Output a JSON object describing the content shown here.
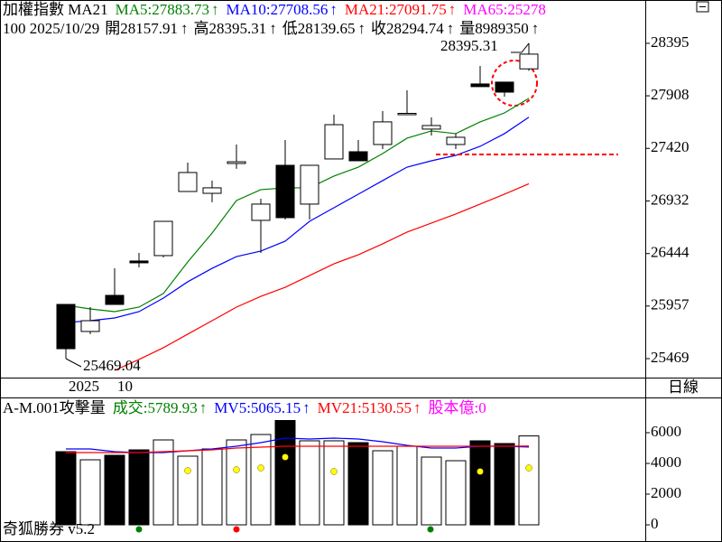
{
  "chart_data": [
    {
      "type": "candlestick",
      "title": "加權指數 MA21",
      "arrow": "↑",
      "info": [
        "100 2025/10/29",
        "開28157.91",
        "高28395.31",
        "低28139.65",
        "收28294.74",
        "量8989350"
      ],
      "categories": [
        "2025",
        null,
        "10",
        null,
        null,
        null,
        null,
        null,
        null,
        null,
        null,
        null,
        null,
        null,
        null,
        null,
        null,
        null,
        null,
        null
      ],
      "open": [
        25972,
        25721,
        26056,
        26375,
        26425,
        27020,
        27003,
        27280,
        26752,
        27263,
        26903,
        27322,
        27389,
        27456,
        27741,
        27599,
        27456,
        28018,
        28035,
        28157.91
      ],
      "high": [
        25972,
        25947,
        26307,
        26450,
        26743,
        27288,
        27121,
        27456,
        26953,
        27498,
        27263,
        27733,
        27498,
        27766,
        27959,
        27708,
        27557,
        28185,
        28035,
        28395.31
      ],
      "low": [
        25469.04,
        25696,
        25972,
        26316,
        26408,
        27020,
        26920,
        27230,
        26450,
        26760,
        26760,
        27322,
        27305,
        27414,
        27741,
        27540,
        27414,
        27993,
        27900,
        28139.65
      ],
      "close": [
        25561,
        25821,
        25972,
        26358,
        26743,
        27196,
        27054,
        27296,
        26903,
        26777,
        27263,
        27640,
        27305,
        27666,
        27745,
        27632,
        27523,
        27993,
        27942,
        28294.74
      ],
      "up_color": "#ffffff",
      "down_color": "#000000",
      "series": [
        {
          "name": "MA5:27883.73",
          "color": "#008000",
          "values": [
            25964,
            25930,
            25905,
            25947,
            26073,
            26366,
            26634,
            26936,
            27037,
            27054,
            27054,
            27163,
            27246,
            27372,
            27515,
            27582,
            27557,
            27666,
            27749,
            27884
          ]
        },
        {
          "name": "MA10:27708.56",
          "color": "#0000ff",
          "values": [
            25804,
            25821,
            25846,
            25905,
            26031,
            26182,
            26307,
            26416,
            26467,
            26559,
            26743,
            26869,
            26995,
            27121,
            27246,
            27305,
            27355,
            27439,
            27557,
            27709
          ]
        },
        {
          "name": "MA21:27091.75",
          "color": "#ff0000",
          "values": [
            null,
            null,
            25360,
            25461,
            25570,
            25696,
            25821,
            25947,
            26047,
            26131,
            26240,
            26349,
            26433,
            26534,
            26643,
            26727,
            26811,
            26903,
            26995,
            27092
          ]
        }
      ],
      "extra_legend": {
        "name": "MA65:25278",
        "color": "#ff00ff"
      },
      "annotations": [
        "28395.31",
        "25469.04"
      ],
      "reference_line": {
        "value": 27364,
        "color": "#ff0000"
      },
      "period_label": "日線",
      "ylim": [
        25293,
        28797
      ],
      "yticks": [
        28395,
        27908,
        27420,
        26932,
        26444,
        25957,
        25469
      ]
    },
    {
      "type": "bar",
      "title": "A-M.001攻擊量",
      "name": "成交:5789.93",
      "name_color": "#008000",
      "values": [
        4765,
        4235,
        4529,
        4882,
        5529,
        4471,
        4941,
        5529,
        5882,
        6824,
        5471,
        5471,
        5353,
        4824,
        5118,
        4412,
        4176,
        5471,
        5294,
        5790
      ],
      "series": [
        {
          "name": "MV5:5065.15",
          "color": "#0000ff",
          "values": [
            4941,
            4941,
            4765,
            4706,
            4706,
            4824,
            4941,
            5118,
            5353,
            5647,
            5588,
            5647,
            5588,
            5412,
            5176,
            5000,
            5000,
            5118,
            5118,
            5065
          ]
        },
        {
          "name": "MV21:5130.55",
          "color": "#ff0000",
          "values": [
            4706,
            4706,
            4706,
            4706,
            4765,
            4824,
            4882,
            5000,
            5059,
            5118,
            5118,
            5118,
            5118,
            5118,
            5118,
            5118,
            5118,
            5118,
            5118,
            5131
          ]
        }
      ],
      "markers": {
        "color": "#ffff00",
        "values": [
          null,
          null,
          null,
          null,
          null,
          3529,
          null,
          3588,
          3706,
          4412,
          null,
          3471,
          null,
          null,
          null,
          null,
          null,
          3471,
          null,
          3706
        ]
      },
      "extra_legend": {
        "name": "股本億:0",
        "color": "#ff00ff"
      },
      "ylim": [
        -1118,
        8294
      ],
      "yticks": [
        6000,
        4000,
        2000,
        0
      ]
    }
  ],
  "footer": "奇狐勝券 v5.2"
}
